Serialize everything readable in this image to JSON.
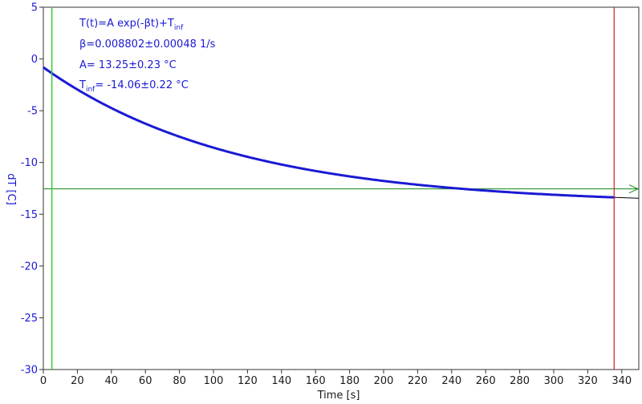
{
  "chart_data": {
    "type": "line",
    "title": "",
    "xlabel": "Time [s]",
    "ylabel": "dT [C]",
    "xlim": [
      0,
      350
    ],
    "ylim": [
      -30,
      5
    ],
    "x_ticks": [
      0,
      20,
      40,
      60,
      80,
      100,
      120,
      140,
      160,
      180,
      200,
      220,
      240,
      260,
      280,
      300,
      320,
      340
    ],
    "y_ticks": [
      5,
      0,
      -5,
      -10,
      -15,
      -20,
      -25,
      -30
    ],
    "grid": false,
    "colors": {
      "data": "#1a1ad4",
      "fit": "#000000",
      "axis_text": "#1a1ad4",
      "start_marker": "#33cc33",
      "end_marker": "#cc2222",
      "asymptote": "#118811"
    },
    "fit": {
      "beta": 0.008802,
      "A": 13.25,
      "T_inf": -14.06,
      "x_range": [
        0,
        350
      ]
    },
    "data_range": [
      0,
      336
    ],
    "markers": {
      "start_x": 5,
      "end_x": 335.5,
      "asymptote_y": -12.55
    },
    "annotations": {
      "formula": "T(t)=A exp(-βt)+T",
      "formula_sub": "inf",
      "beta": "β=0.008802±0.00048 1/s",
      "amp": "A= 13.25±0.23 °C",
      "tinf_main": "T",
      "tinf_sub": "inf",
      "tinf_value": "= -14.06±0.22 °C"
    }
  }
}
